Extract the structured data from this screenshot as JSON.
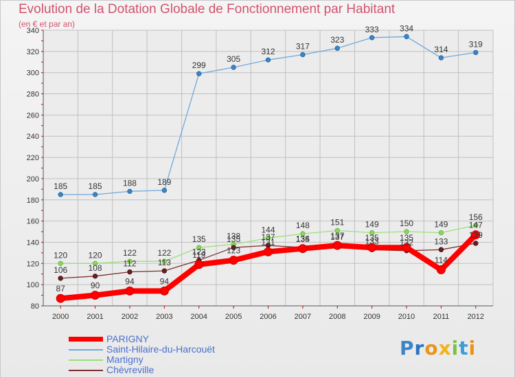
{
  "header": {
    "title": "Evolution de la Dotation Globale de Fonctionnement par Habitant",
    "subtitle": "(en € et par an)"
  },
  "logo": {
    "text": "Proxiti"
  },
  "colors": {
    "title": "#d2526e",
    "axis_tick": "#cc0000",
    "grid": "#c0c0c0",
    "PARIGNY": "#ff0000",
    "Saint-Hilaire-du-Harcouët": "#6fa8dc",
    "Martigny": "#99e07a",
    "Chèvreville": "#7b2f2f"
  },
  "chart_data": {
    "type": "line",
    "title": "Evolution de la Dotation Globale de Fonctionnement par Habitant",
    "subtitle": "(en € et par an)",
    "xlabel": "",
    "ylabel": "",
    "x": [
      2000,
      2001,
      2002,
      2003,
      2004,
      2005,
      2006,
      2007,
      2008,
      2009,
      2010,
      2011,
      2012
    ],
    "ylim": [
      80,
      340
    ],
    "yticks": [
      80,
      100,
      120,
      140,
      160,
      180,
      200,
      220,
      240,
      260,
      280,
      300,
      320,
      340
    ],
    "grid": true,
    "legend_position": "bottom-left",
    "series": [
      {
        "name": "PARIGNY",
        "values": [
          87,
          90,
          94,
          94,
          119,
          123,
          131,
          134,
          137,
          135,
          135,
          114,
          147
        ],
        "labels": [
          "87",
          "90",
          "94",
          "94",
          "119",
          "123",
          "131",
          "134",
          "137",
          "135",
          "135",
          "114",
          "147"
        ]
      },
      {
        "name": "Saint-Hilaire-du-Harcouët",
        "values": [
          185,
          185,
          188,
          189,
          299,
          305,
          312,
          317,
          323,
          333,
          334,
          314,
          319
        ],
        "labels": [
          "185",
          "185",
          "188",
          "189",
          "299",
          "305",
          "312",
          "317",
          "323",
          "333",
          "334",
          "314",
          "319"
        ]
      },
      {
        "name": "Martigny",
        "values": [
          120,
          120,
          122,
          122,
          135,
          138,
          144,
          148,
          151,
          149,
          150,
          149,
          156
        ],
        "labels": [
          "120",
          "120",
          "122",
          "122",
          "135",
          "138",
          "144",
          "148",
          "151",
          "149",
          "150",
          "149",
          "156"
        ]
      },
      {
        "name": "Chèvreville",
        "values": [
          106,
          108,
          112,
          113,
          123,
          135,
          137,
          135,
          137,
          133,
          132,
          133,
          139
        ],
        "labels": [
          "106",
          "108",
          "112",
          "113",
          "123",
          "135",
          "137",
          "135",
          "137",
          "133",
          "132",
          "133",
          "139"
        ]
      }
    ]
  }
}
